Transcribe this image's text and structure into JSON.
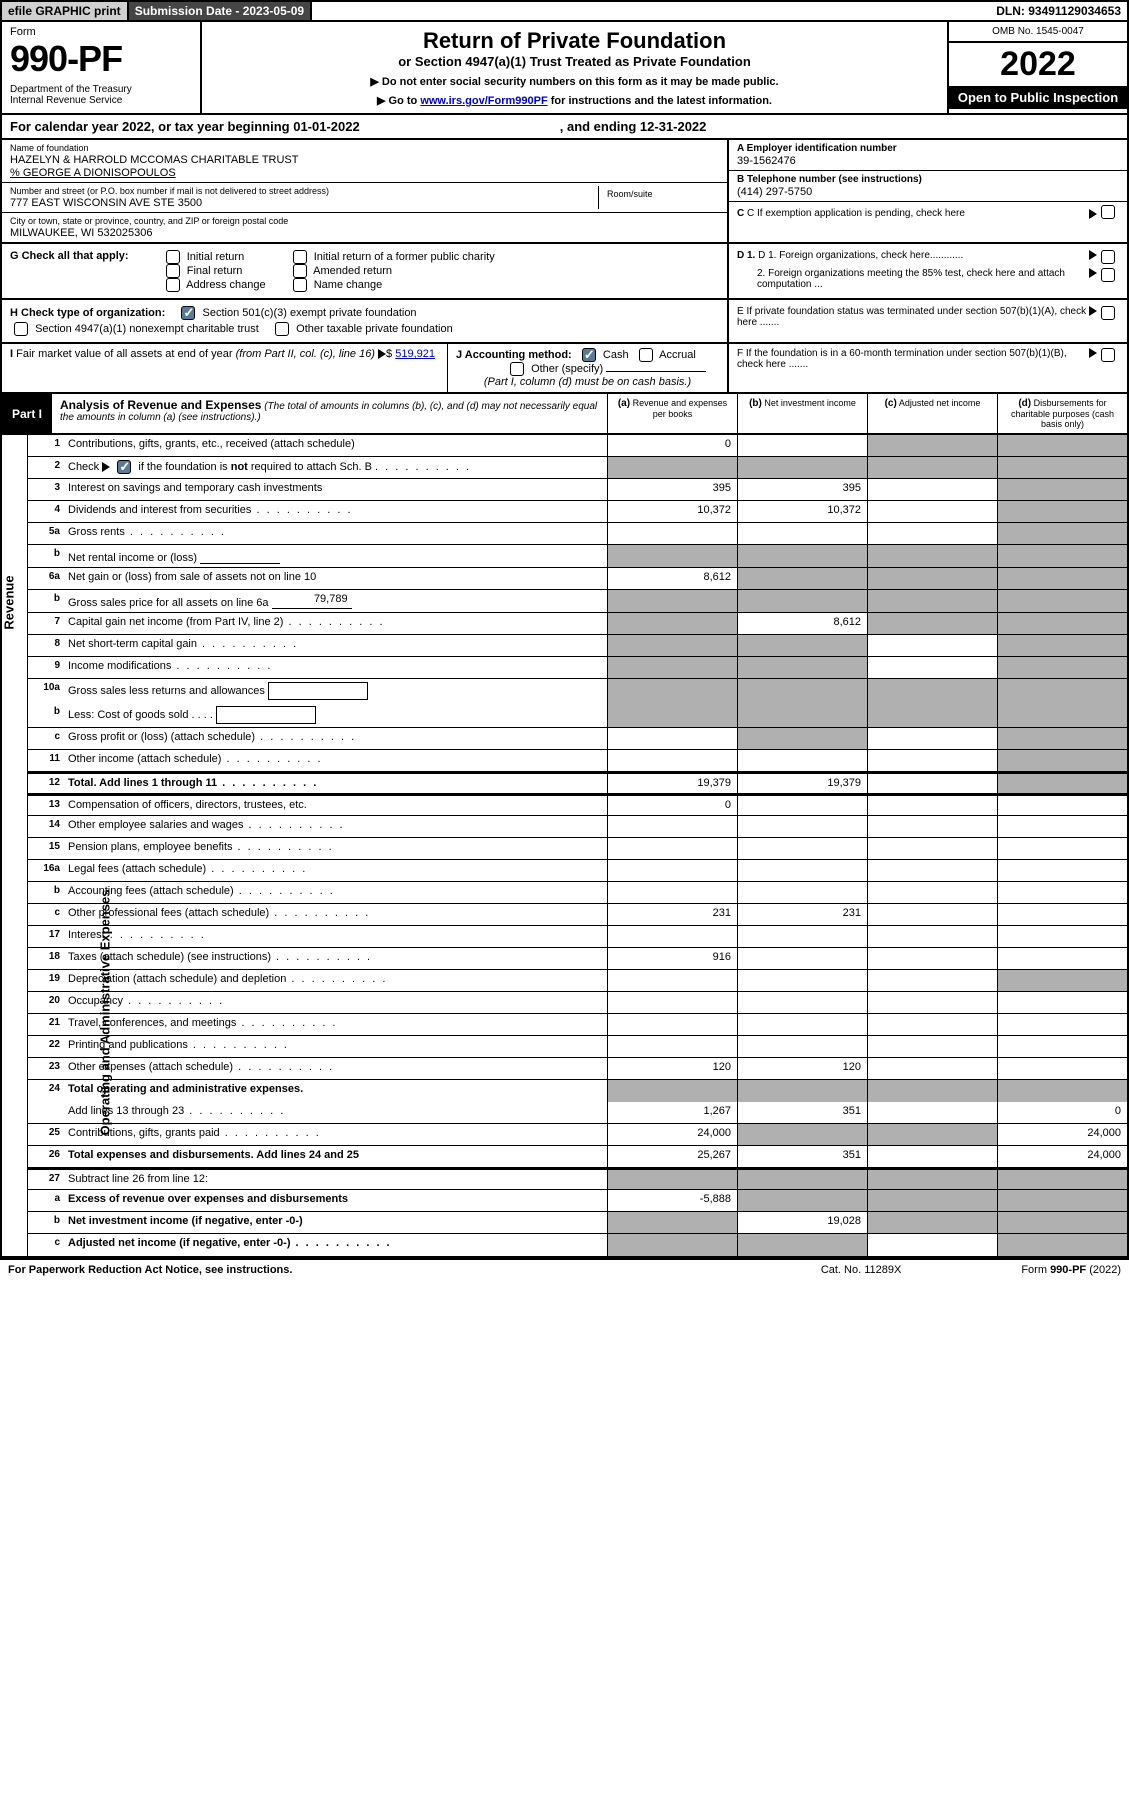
{
  "topbar": {
    "efile": "efile GRAPHIC print",
    "submission": "Submission Date - 2023-05-09",
    "dln": "DLN: 93491129034653"
  },
  "header": {
    "form_label": "Form",
    "form_num": "990-PF",
    "dept": "Department of the Treasury\nInternal Revenue Service",
    "title": "Return of Private Foundation",
    "subtitle": "or Section 4947(a)(1) Trust Treated as Private Foundation",
    "instruct1": "▶ Do not enter social security numbers on this form as it may be made public.",
    "instruct2_pre": "▶ Go to ",
    "instruct2_link": "www.irs.gov/Form990PF",
    "instruct2_post": " for instructions and the latest information.",
    "omb": "OMB No. 1545-0047",
    "year": "2022",
    "open": "Open to Public Inspection"
  },
  "calyear": {
    "text": "For calendar year 2022, or tax year beginning 01-01-2022",
    "ending": ", and ending 12-31-2022"
  },
  "info": {
    "name_lbl": "Name of foundation",
    "name": "HAZELYN & HARROLD MCCOMAS CHARITABLE TRUST",
    "care_of": "% GEORGE A DIONISOPOULOS",
    "addr_lbl": "Number and street (or P.O. box number if mail is not delivered to street address)",
    "addr": "777 EAST WISCONSIN AVE STE 3500",
    "room_lbl": "Room/suite",
    "city_lbl": "City or town, state or province, country, and ZIP or foreign postal code",
    "city": "MILWAUKEE, WI  532025306",
    "ein_lbl": "A Employer identification number",
    "ein": "39-1562476",
    "phone_lbl": "B Telephone number (see instructions)",
    "phone": "(414) 297-5750",
    "c_lbl": "C If exemption application is pending, check here",
    "d1_lbl": "D 1. Foreign organizations, check here............",
    "d2_lbl": "2. Foreign organizations meeting the 85% test, check here and attach computation ...",
    "e_lbl": "E  If private foundation status was terminated under section 507(b)(1)(A), check here .......",
    "f_lbl": "F  If the foundation is in a 60-month termination under section 507(b)(1)(B), check here ......."
  },
  "g": {
    "label": "G Check all that apply:",
    "opts": [
      "Initial return",
      "Final return",
      "Address change",
      "Initial return of a former public charity",
      "Amended return",
      "Name change"
    ]
  },
  "h": {
    "label": "H Check type of organization:",
    "opt1": "Section 501(c)(3) exempt private foundation",
    "opt2": "Section 4947(a)(1) nonexempt charitable trust",
    "opt3": "Other taxable private foundation"
  },
  "i": {
    "label": "I Fair market value of all assets at end of year (from Part II, col. (c), line 16)",
    "val": "519,921"
  },
  "j": {
    "label": "J Accounting method:",
    "opts": [
      "Cash",
      "Accrual",
      "Other (specify)"
    ],
    "note": "(Part I, column (d) must be on cash basis.)"
  },
  "part1": {
    "badge": "Part I",
    "title": "Analysis of Revenue and Expenses",
    "note": "(The total of amounts in columns (b), (c), and (d) may not necessarily equal the amounts in column (a) (see instructions).)",
    "col_a": "Revenue and expenses per books",
    "col_b": "Net investment income",
    "col_c": "Adjusted net income",
    "col_d": "Disbursements for charitable purposes (cash basis only)"
  },
  "sections": {
    "revenue": "Revenue",
    "opex": "Operating and Administrative Expenses"
  },
  "rows": [
    {
      "n": "1",
      "d": "Contributions, gifts, grants, etc., received (attach schedule)",
      "a": "0",
      "shaded": [
        "c",
        "d"
      ]
    },
    {
      "n": "2",
      "d": "Check ▶ ☑ if the foundation is not required to attach Sch. B",
      "dots": true,
      "allshaded": true,
      "checkmark": true
    },
    {
      "n": "3",
      "d": "Interest on savings and temporary cash investments",
      "a": "395",
      "b": "395",
      "shaded": [
        "d"
      ]
    },
    {
      "n": "4",
      "d": "Dividends and interest from securities",
      "dots": true,
      "a": "10,372",
      "b": "10,372",
      "shaded": [
        "d"
      ]
    },
    {
      "n": "5a",
      "d": "Gross rents",
      "dots": true,
      "shaded": [
        "d"
      ]
    },
    {
      "n": "b",
      "d": "Net rental income or (loss)",
      "inlinebox": true,
      "allshaded": true
    },
    {
      "n": "6a",
      "d": "Net gain or (loss) from sale of assets not on line 10",
      "a": "8,612",
      "shaded": [
        "b",
        "c",
        "d"
      ]
    },
    {
      "n": "b",
      "d": "Gross sales price for all assets on line 6a",
      "inlineval": "79,789",
      "allshaded": true
    },
    {
      "n": "7",
      "d": "Capital gain net income (from Part IV, line 2)",
      "dots": true,
      "b": "8,612",
      "shaded": [
        "a",
        "c",
        "d"
      ]
    },
    {
      "n": "8",
      "d": "Net short-term capital gain",
      "dots": true,
      "shaded": [
        "a",
        "b",
        "d"
      ]
    },
    {
      "n": "9",
      "d": "Income modifications",
      "dots": true,
      "shaded": [
        "a",
        "b",
        "d"
      ]
    },
    {
      "n": "10a",
      "d": "Gross sales less returns and allowances",
      "minibox": true,
      "allshaded": true,
      "noborder": true
    },
    {
      "n": "b",
      "d": "Less: Cost of goods sold",
      "dots": true,
      "minibox": true,
      "allshaded": true
    },
    {
      "n": "c",
      "d": "Gross profit or (loss) (attach schedule)",
      "dots": true,
      "shaded": [
        "b",
        "d"
      ]
    },
    {
      "n": "11",
      "d": "Other income (attach schedule)",
      "dots": true,
      "shaded": [
        "d"
      ]
    },
    {
      "n": "12",
      "d": "Total. Add lines 1 through 11",
      "dots": true,
      "bold": true,
      "a": "19,379",
      "b": "19,379",
      "shaded": [
        "d"
      ]
    },
    {
      "n": "13",
      "d": "Compensation of officers, directors, trustees, etc.",
      "a": "0",
      "section": "opex"
    },
    {
      "n": "14",
      "d": "Other employee salaries and wages",
      "dots": true
    },
    {
      "n": "15",
      "d": "Pension plans, employee benefits",
      "dots": true
    },
    {
      "n": "16a",
      "d": "Legal fees (attach schedule)",
      "dots": true
    },
    {
      "n": "b",
      "d": "Accounting fees (attach schedule)",
      "dots": true
    },
    {
      "n": "c",
      "d": "Other professional fees (attach schedule)",
      "dots": true,
      "a": "231",
      "b": "231"
    },
    {
      "n": "17",
      "d": "Interest",
      "dots": true
    },
    {
      "n": "18",
      "d": "Taxes (attach schedule) (see instructions)",
      "dots": true,
      "a": "916"
    },
    {
      "n": "19",
      "d": "Depreciation (attach schedule) and depletion",
      "dots": true,
      "shaded": [
        "d"
      ]
    },
    {
      "n": "20",
      "d": "Occupancy",
      "dots": true
    },
    {
      "n": "21",
      "d": "Travel, conferences, and meetings",
      "dots": true
    },
    {
      "n": "22",
      "d": "Printing and publications",
      "dots": true
    },
    {
      "n": "23",
      "d": "Other expenses (attach schedule)",
      "dots": true,
      "a": "120",
      "b": "120"
    },
    {
      "n": "24",
      "d": "Total operating and administrative expenses.",
      "bold": true,
      "allshaded": true,
      "noborder": true
    },
    {
      "n": "",
      "d": "Add lines 13 through 23",
      "dots": true,
      "a": "1,267",
      "b": "351",
      "d_": "0"
    },
    {
      "n": "25",
      "d": "Contributions, gifts, grants paid",
      "dots": true,
      "a": "24,000",
      "d_": "24,000",
      "shaded": [
        "b",
        "c"
      ]
    },
    {
      "n": "26",
      "d": "Total expenses and disbursements. Add lines 24 and 25",
      "bold": true,
      "a": "25,267",
      "b": "351",
      "d_": "24,000"
    },
    {
      "n": "27",
      "d": "Subtract line 26 from line 12:",
      "allshaded": true,
      "section": "final"
    },
    {
      "n": "a",
      "d": "Excess of revenue over expenses and disbursements",
      "bold": true,
      "a": "-5,888",
      "shaded": [
        "b",
        "c",
        "d"
      ]
    },
    {
      "n": "b",
      "d": "Net investment income (if negative, enter -0-)",
      "bold": true,
      "b": "19,028",
      "shaded": [
        "a",
        "c",
        "d"
      ]
    },
    {
      "n": "c",
      "d": "Adjusted net income (if negative, enter -0-)",
      "dots": true,
      "bold": true,
      "shaded": [
        "a",
        "b",
        "d"
      ]
    }
  ],
  "footer": {
    "left": "For Paperwork Reduction Act Notice, see instructions.",
    "mid": "Cat. No. 11289X",
    "right": "Form 990-PF (2022)"
  }
}
